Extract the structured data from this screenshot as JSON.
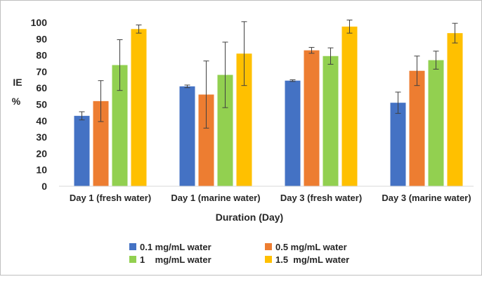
{
  "chart_data": {
    "type": "bar",
    "title": "",
    "xlabel": "Duration (Day)",
    "ylabel": [
      "IE",
      "%"
    ],
    "ylim": [
      0,
      100
    ],
    "yticks": [
      0,
      10,
      20,
      30,
      40,
      50,
      60,
      70,
      80,
      90,
      100
    ],
    "grid": false,
    "legend_position": "bottom",
    "categories": [
      "Day 1 (fresh water)",
      "Day 1 (marine water)",
      "Day 3 (fresh water)",
      "Day 3 (marine water)"
    ],
    "series": [
      {
        "name": "0.1 mg/mL water",
        "color": "#4472c4",
        "values": [
          43,
          61,
          64.5,
          51
        ],
        "errors": [
          2.5,
          0.8,
          0.5,
          6.5
        ]
      },
      {
        "name": "0.5 mg/mL water",
        "color": "#ed7d31",
        "values": [
          52,
          56,
          83,
          70.5
        ],
        "errors": [
          12.5,
          20.5,
          1.8,
          9
        ]
      },
      {
        "name": "1    mg/mL water",
        "color": "#92d050",
        "values": [
          74,
          68,
          79.5,
          77
        ],
        "errors": [
          15.5,
          20,
          5,
          5.5
        ]
      },
      {
        "name": "1.5  mg/mL water",
        "color": "#ffc000",
        "values": [
          96,
          81,
          97.5,
          93.5
        ],
        "errors": [
          2.5,
          19.5,
          4,
          6
        ]
      }
    ]
  }
}
